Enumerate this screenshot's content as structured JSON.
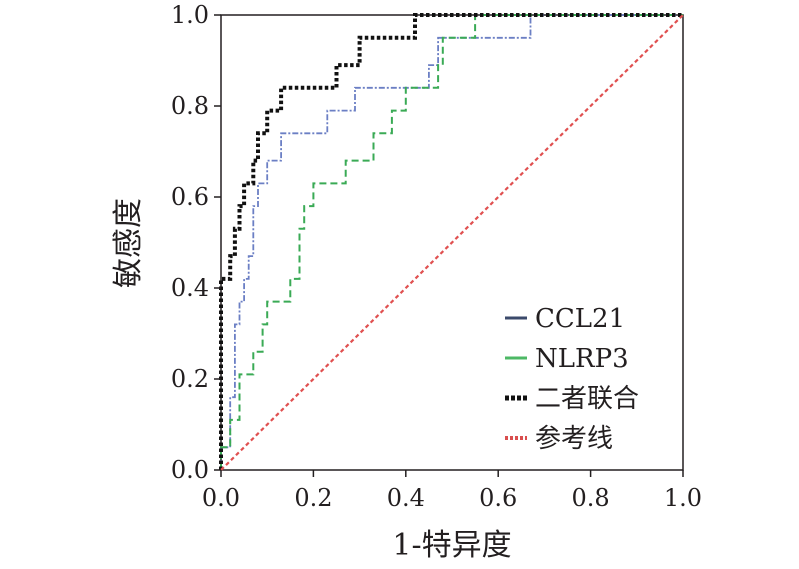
{
  "chart_data": {
    "type": "line",
    "xlabel": "1-特异度",
    "ylabel": "敏感度",
    "xlim": [
      0.0,
      1.0
    ],
    "ylim": [
      0.0,
      1.0
    ],
    "x_ticks": [
      "0.0",
      "0.2",
      "0.4",
      "0.6",
      "0.8",
      "1.0"
    ],
    "y_ticks": [
      "0.0",
      "0.2",
      "0.4",
      "0.6",
      "0.8",
      "1.0"
    ],
    "grid": false,
    "legend_position": "bottom-right",
    "series": [
      {
        "name": "CCL21",
        "color": "#6b7fc4",
        "legend_color": "#3b4a6b",
        "style": "dashdot",
        "points": [
          [
            0,
            0
          ],
          [
            0,
            0.05
          ],
          [
            0.02,
            0.05
          ],
          [
            0.02,
            0.16
          ],
          [
            0.03,
            0.16
          ],
          [
            0.03,
            0.32
          ],
          [
            0.04,
            0.32
          ],
          [
            0.04,
            0.37
          ],
          [
            0.05,
            0.37
          ],
          [
            0.05,
            0.42
          ],
          [
            0.06,
            0.42
          ],
          [
            0.06,
            0.47
          ],
          [
            0.07,
            0.47
          ],
          [
            0.07,
            0.58
          ],
          [
            0.08,
            0.58
          ],
          [
            0.08,
            0.63
          ],
          [
            0.1,
            0.63
          ],
          [
            0.1,
            0.68
          ],
          [
            0.13,
            0.68
          ],
          [
            0.13,
            0.74
          ],
          [
            0.23,
            0.74
          ],
          [
            0.23,
            0.79
          ],
          [
            0.29,
            0.79
          ],
          [
            0.29,
            0.84
          ],
          [
            0.45,
            0.84
          ],
          [
            0.45,
            0.89
          ],
          [
            0.47,
            0.89
          ],
          [
            0.47,
            0.95
          ],
          [
            0.67,
            0.95
          ],
          [
            0.67,
            1.0
          ],
          [
            1.0,
            1.0
          ]
        ]
      },
      {
        "name": "NLRP3",
        "color": "#3aaa55",
        "legend_color": "#4db865",
        "style": "dashed",
        "points": [
          [
            0,
            0
          ],
          [
            0,
            0.05
          ],
          [
            0.02,
            0.05
          ],
          [
            0.02,
            0.11
          ],
          [
            0.04,
            0.11
          ],
          [
            0.04,
            0.21
          ],
          [
            0.07,
            0.21
          ],
          [
            0.07,
            0.26
          ],
          [
            0.09,
            0.26
          ],
          [
            0.09,
            0.32
          ],
          [
            0.1,
            0.32
          ],
          [
            0.1,
            0.37
          ],
          [
            0.15,
            0.37
          ],
          [
            0.15,
            0.42
          ],
          [
            0.17,
            0.42
          ],
          [
            0.17,
            0.53
          ],
          [
            0.18,
            0.53
          ],
          [
            0.18,
            0.58
          ],
          [
            0.2,
            0.58
          ],
          [
            0.2,
            0.63
          ],
          [
            0.27,
            0.63
          ],
          [
            0.27,
            0.68
          ],
          [
            0.33,
            0.68
          ],
          [
            0.33,
            0.74
          ],
          [
            0.37,
            0.74
          ],
          [
            0.37,
            0.79
          ],
          [
            0.4,
            0.79
          ],
          [
            0.4,
            0.84
          ],
          [
            0.47,
            0.84
          ],
          [
            0.47,
            0.89
          ],
          [
            0.48,
            0.89
          ],
          [
            0.48,
            0.95
          ],
          [
            0.55,
            0.95
          ],
          [
            0.55,
            1.0
          ],
          [
            1.0,
            1.0
          ]
        ]
      },
      {
        "name": "二者联合",
        "color": "#111111",
        "legend_color": "#111111",
        "style": "dotted",
        "points": [
          [
            0,
            0
          ],
          [
            0,
            0.42
          ],
          [
            0.02,
            0.42
          ],
          [
            0.02,
            0.47
          ],
          [
            0.03,
            0.47
          ],
          [
            0.03,
            0.53
          ],
          [
            0.04,
            0.53
          ],
          [
            0.04,
            0.58
          ],
          [
            0.05,
            0.58
          ],
          [
            0.05,
            0.63
          ],
          [
            0.07,
            0.63
          ],
          [
            0.07,
            0.68
          ],
          [
            0.08,
            0.68
          ],
          [
            0.08,
            0.74
          ],
          [
            0.1,
            0.74
          ],
          [
            0.1,
            0.79
          ],
          [
            0.13,
            0.79
          ],
          [
            0.13,
            0.84
          ],
          [
            0.25,
            0.84
          ],
          [
            0.25,
            0.89
          ],
          [
            0.3,
            0.89
          ],
          [
            0.3,
            0.95
          ],
          [
            0.42,
            0.95
          ],
          [
            0.42,
            1.0
          ],
          [
            1.0,
            1.0
          ]
        ]
      },
      {
        "name": "参考线",
        "color": "#e05050",
        "legend_color": "#d94f4f",
        "style": "reference",
        "points": [
          [
            0,
            0
          ],
          [
            1,
            1
          ]
        ]
      }
    ]
  }
}
